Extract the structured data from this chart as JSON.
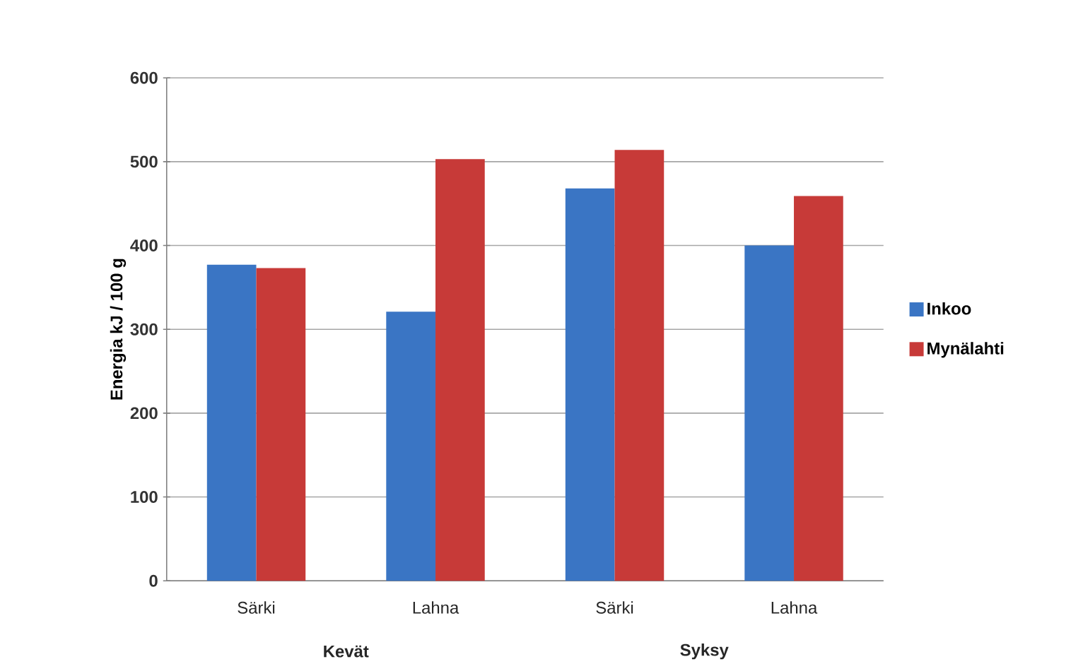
{
  "chart_data": {
    "type": "bar",
    "ylabel": "Energia kJ / 100 g",
    "categories": [
      "Särki",
      "Lahna",
      "Särki",
      "Lahna"
    ],
    "annotations": [
      "Kevät",
      "Syksy"
    ],
    "series": [
      {
        "name": "Inkoo",
        "color": "#3a75c4",
        "values": [
          377,
          321,
          468,
          400
        ]
      },
      {
        "name": "Mynälahti",
        "color": "#c73a38",
        "values": [
          373,
          503,
          514,
          459
        ]
      }
    ],
    "ylim": [
      0,
      600
    ],
    "yticks": [
      0,
      100,
      200,
      300,
      400,
      500,
      600
    ],
    "grid": "y",
    "legend": "right"
  }
}
